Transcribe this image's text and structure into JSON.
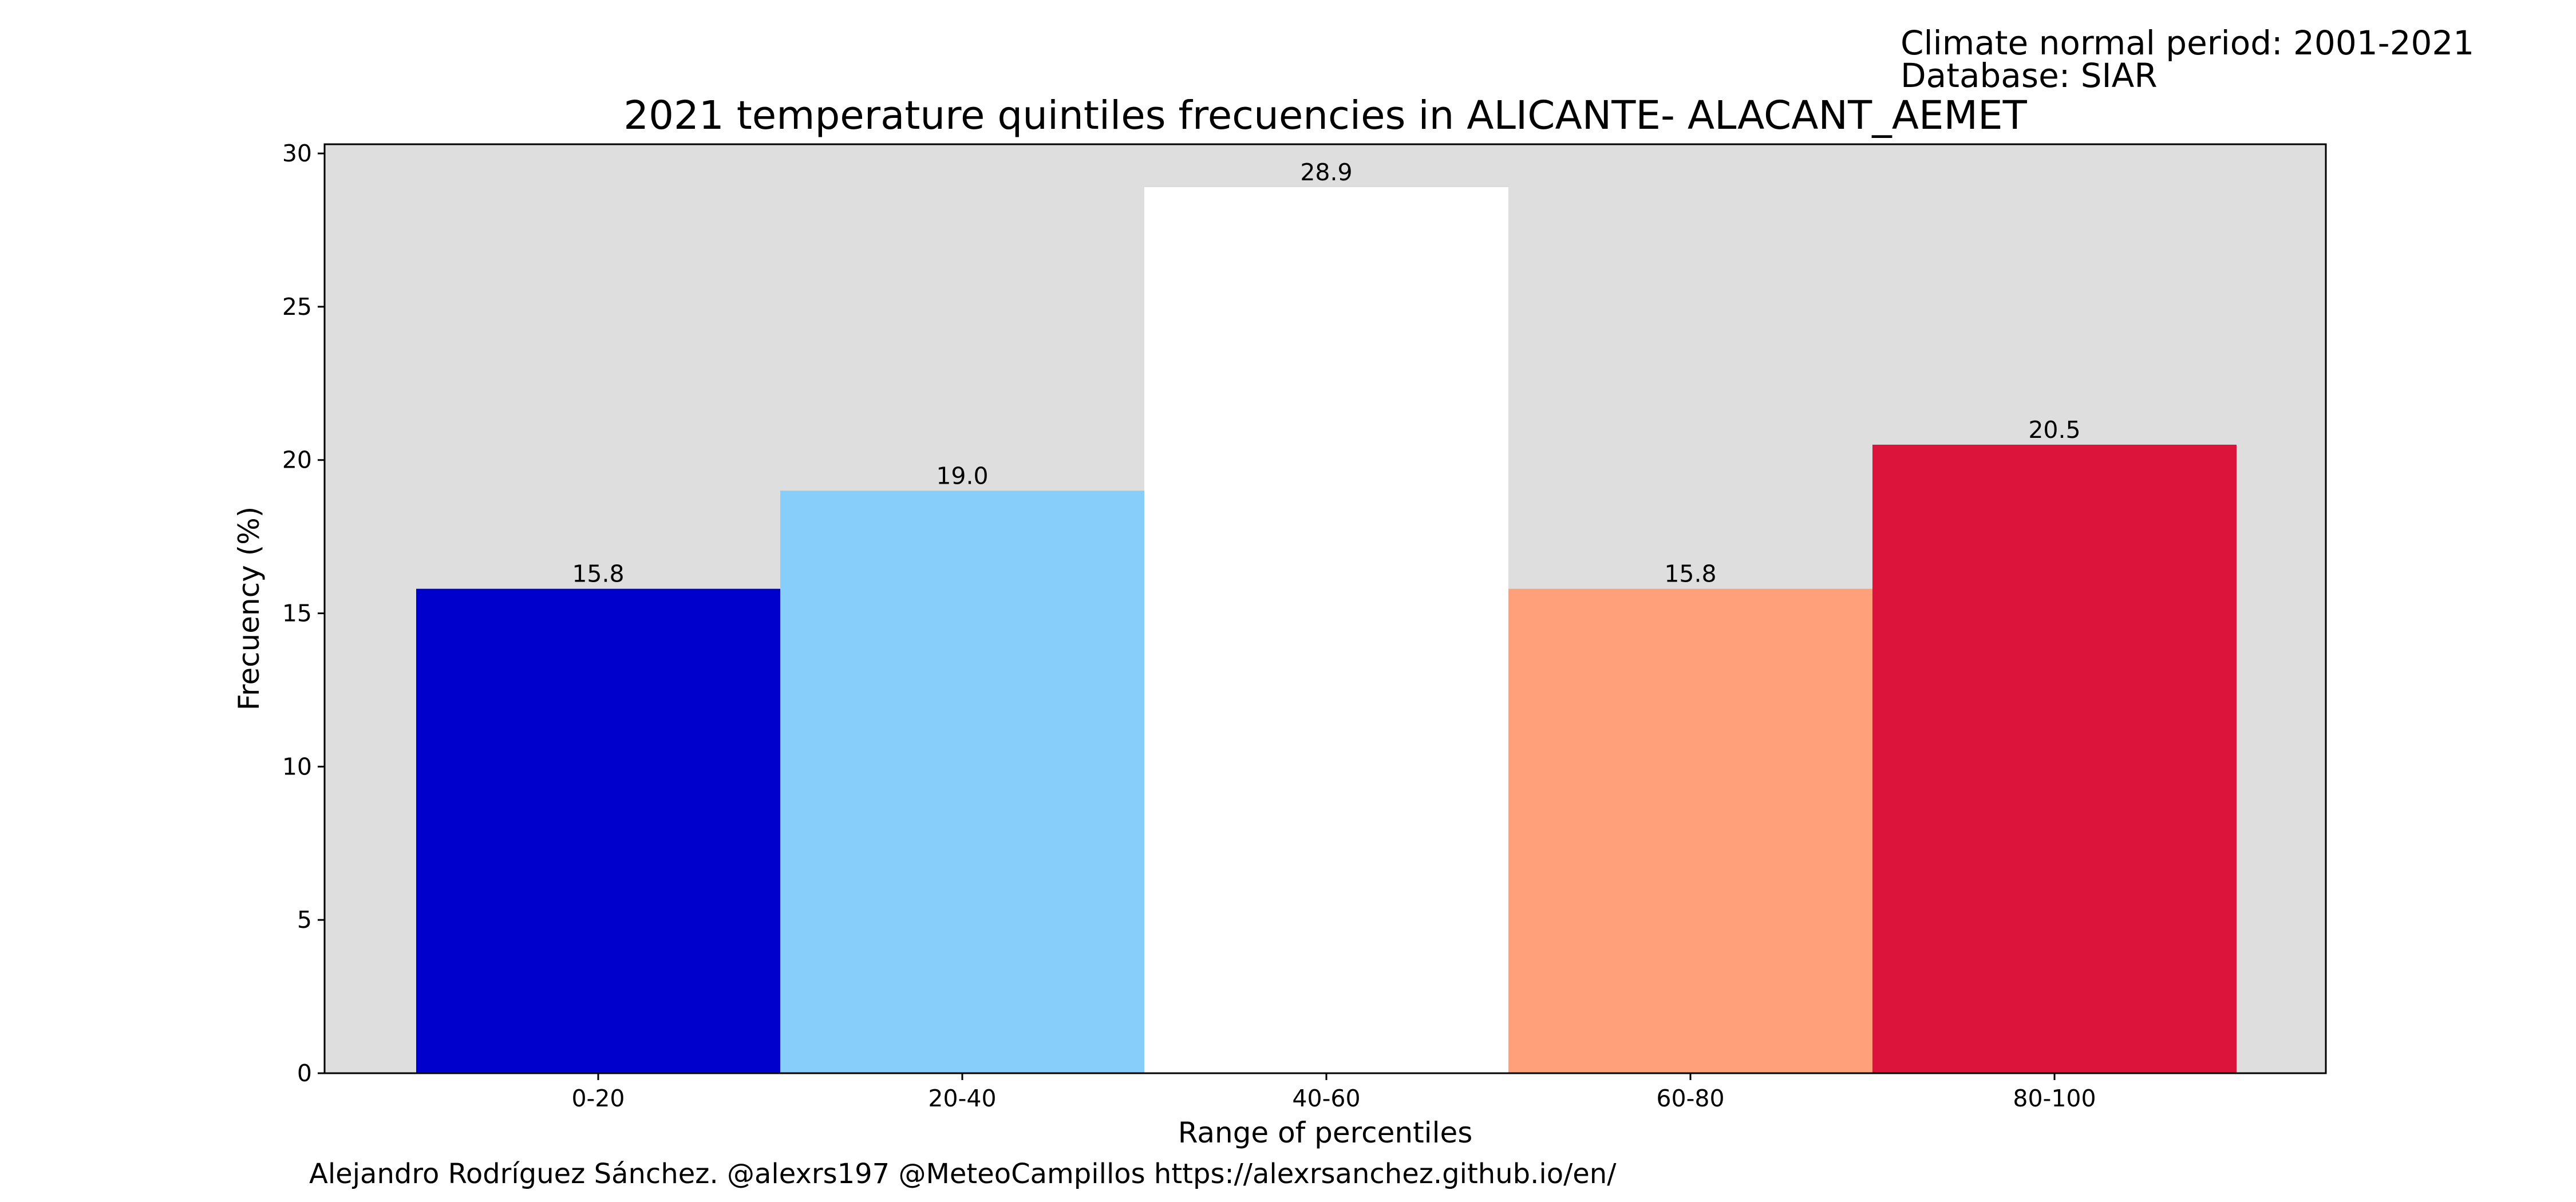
{
  "meta": {
    "period_line": "Climate normal period: 2001-2021",
    "database_line": "Database: SIAR"
  },
  "footer": {
    "credit": "Alejandro Rodríguez Sánchez. @alexrs197 @MeteoCampillos   https://alexrsanchez.github.io/en/"
  },
  "chart_data": {
    "type": "bar",
    "title": "2021 temperature quintiles frecuencies in ALICANTE- ALACANT_AEMET",
    "xlabel": "Range of percentiles",
    "ylabel": "Frecuency (%)",
    "categories": [
      "0-20",
      "20-40",
      "40-60",
      "60-80",
      "80-100"
    ],
    "values": [
      15.8,
      19.0,
      28.9,
      15.8,
      20.5
    ],
    "data_labels": [
      "15.8",
      "19.0",
      "28.9",
      "15.8",
      "20.5"
    ],
    "bar_colors": [
      "#0000cd",
      "#87cefa",
      "#ffffff",
      "#ffa07a",
      "#dc143c"
    ],
    "plot_background": "#dedede",
    "ylim": [
      0,
      30.3
    ],
    "yticks": [
      0,
      5,
      10,
      15,
      20,
      25,
      30
    ],
    "grid": false,
    "legend": false
  }
}
